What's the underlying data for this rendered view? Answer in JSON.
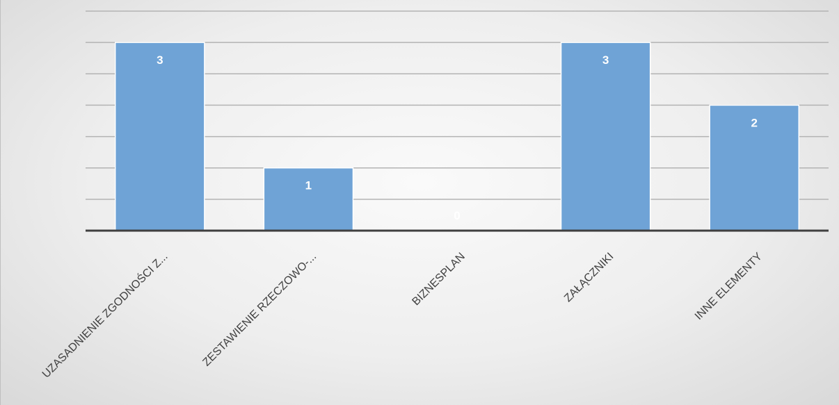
{
  "chart_data": {
    "type": "bar",
    "categories": [
      "UZASADNIENIE ZGODNOŚCI Z...",
      "ZESTAWIENIE RZECZOWO-...",
      "BIZNESPLAN",
      "ZAŁĄCZNIKI",
      "INNE ELEMENTY"
    ],
    "values": [
      3,
      1,
      0,
      3,
      2
    ],
    "data_labels": [
      "3",
      "1",
      "0",
      "3",
      "2"
    ],
    "ylim": [
      0,
      3.5
    ],
    "y_gridline_step": 0.5,
    "grid": true,
    "legend": "none",
    "colors": {
      "bar": "#6fa3d6",
      "bar_border": "#ffffff",
      "grid": "#b3b3b3",
      "axis": "#3f3f3f",
      "tick_text": "#404040",
      "label_text": "#ffffff"
    }
  }
}
